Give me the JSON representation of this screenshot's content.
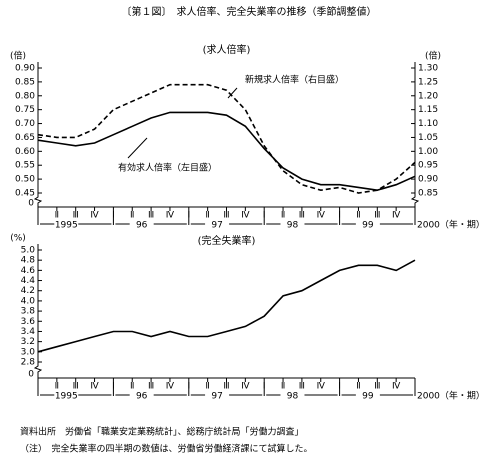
{
  "title": "〔第１図〕　求人倍率、完全失業率の推移（季節調整値）",
  "chart_data": [
    {
      "type": "line",
      "title": "(求人倍率)",
      "categories": [
        "Ⅰ",
        "Ⅱ",
        "Ⅲ",
        "Ⅳ",
        "Ⅰ",
        "Ⅱ",
        "Ⅲ",
        "Ⅳ",
        "Ⅰ",
        "Ⅱ",
        "Ⅲ",
        "Ⅳ",
        "Ⅰ",
        "Ⅱ",
        "Ⅲ",
        "Ⅳ",
        "Ⅰ",
        "Ⅱ",
        "Ⅲ",
        "Ⅳ",
        "Ⅰ"
      ],
      "years": [
        "1995",
        "96",
        "97",
        "98",
        "99",
        "2000"
      ],
      "x_unit": "（年・期）",
      "y_label": "(倍)",
      "y2_label": "(倍)",
      "axis_break_label": "0",
      "ylim": [
        0.45,
        0.9
      ],
      "yticks": [
        0.45,
        {
          "value": 0.5,
          "label": "0.50"
        },
        0.55,
        {
          "value": 0.6,
          "label": "0.60"
        },
        0.65,
        {
          "value": 0.7,
          "label": "0.70"
        },
        0.75,
        {
          "value": 0.8,
          "label": "0.80"
        },
        0.85,
        {
          "value": 0.9,
          "label": "0.90"
        }
      ],
      "y2lim": [
        0.85,
        1.3
      ],
      "y2ticks": [
        0.85,
        {
          "value": 0.9,
          "label": "0.90"
        },
        0.95,
        {
          "value": 1,
          "label": "1.00"
        },
        1.05,
        {
          "value": 1.1,
          "label": "1.10"
        },
        1.15,
        {
          "value": 1.2,
          "label": "1.20"
        },
        1.25,
        {
          "value": 1.3,
          "label": "1.30"
        }
      ],
      "series": [
        {
          "name": "有効求人倍率（左目盛）",
          "color": "#000000",
          "line_style": "solid",
          "values": [
            0.64,
            0.63,
            0.62,
            0.63,
            0.66,
            0.69,
            0.72,
            0.74,
            0.74,
            0.74,
            0.73,
            0.69,
            0.61,
            0.54,
            0.5,
            0.48,
            0.48,
            0.47,
            0.46,
            0.48,
            0.51
          ]
        },
        {
          "name": "新規求人倍率（右目盛）",
          "color": "#000000",
          "line_style": "dashed",
          "axis": "y2",
          "values": [
            1.06,
            1.05,
            1.05,
            1.08,
            1.15,
            1.18,
            1.21,
            1.24,
            1.24,
            1.24,
            1.22,
            1.15,
            1.02,
            0.93,
            0.88,
            0.86,
            0.87,
            0.85,
            0.86,
            0.9,
            0.96
          ]
        }
      ]
    },
    {
      "type": "line",
      "title": "(完全失業率)",
      "categories": [
        "Ⅰ",
        "Ⅱ",
        "Ⅲ",
        "Ⅳ",
        "Ⅰ",
        "Ⅱ",
        "Ⅲ",
        "Ⅳ",
        "Ⅰ",
        "Ⅱ",
        "Ⅲ",
        "Ⅳ",
        "Ⅰ",
        "Ⅱ",
        "Ⅲ",
        "Ⅳ",
        "Ⅰ",
        "Ⅱ",
        "Ⅲ",
        "Ⅳ",
        "Ⅰ"
      ],
      "years": [
        "1995",
        "96",
        "97",
        "98",
        "99",
        "2000"
      ],
      "x_unit": "（年・期）",
      "y_label": "(%)",
      "axis_break_label": "0",
      "ylim": [
        2.8,
        5.0
      ],
      "yticks": [
        2.8,
        {
          "value": 3,
          "label": "3.0"
        },
        3.2,
        3.4,
        3.6,
        3.8,
        {
          "value": 4,
          "label": "4.0"
        },
        4.2,
        4.4,
        4.6,
        4.8,
        {
          "value": 5,
          "label": "5.0"
        }
      ],
      "series": [
        {
          "name": "完全失業率",
          "color": "#000000",
          "line_style": "solid",
          "values": [
            3.0,
            3.1,
            3.2,
            3.3,
            3.4,
            3.4,
            3.3,
            3.4,
            3.3,
            3.3,
            3.4,
            3.5,
            3.7,
            4.1,
            4.2,
            4.4,
            4.6,
            4.7,
            4.7,
            4.6,
            4.8
          ]
        }
      ]
    }
  ],
  "notes": [
    "資料出所　労働省「職業安定業務統計」、総務庁統計局「労働力調査」",
    "（注）　完全失業率の四半期の数値は、労働省労働経済課にて試算した。"
  ]
}
